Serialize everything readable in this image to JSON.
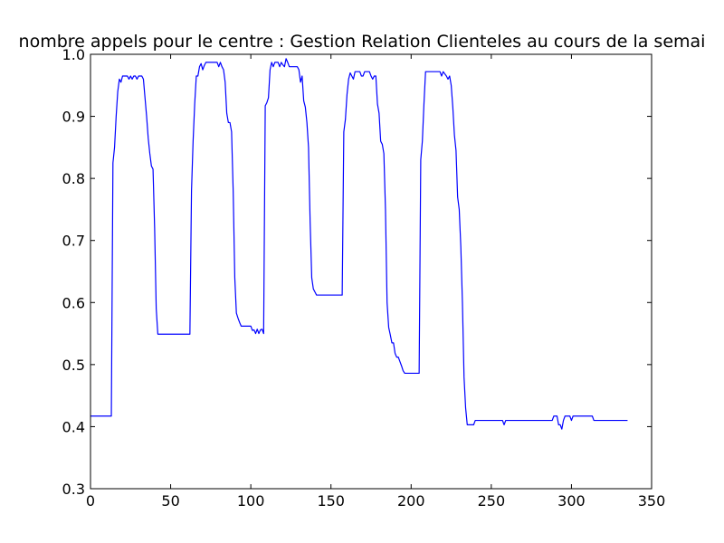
{
  "chart_data": {
    "type": "line",
    "title": "nombre appels pour le centre : Gestion Relation Clienteles au cours de la semai",
    "xlabel": "",
    "ylabel": "",
    "xlim": [
      0,
      350
    ],
    "ylim": [
      0.3,
      1.0
    ],
    "x_ticks": [
      0,
      50,
      100,
      150,
      200,
      250,
      300,
      350
    ],
    "y_ticks": [
      0.3,
      0.4,
      0.5,
      0.6,
      0.7,
      0.8,
      0.9,
      1.0
    ],
    "x_tick_labels": [
      "0",
      "50",
      "100",
      "150",
      "200",
      "250",
      "300",
      "350"
    ],
    "y_tick_labels": [
      "0.3",
      "0.4",
      "0.5",
      "0.6",
      "0.7",
      "0.8",
      "0.9",
      "1.0"
    ],
    "grid": false,
    "series": [
      {
        "color": "#0000ff",
        "points": [
          [
            0,
            0.417
          ],
          [
            13,
            0.417
          ],
          [
            14,
            0.825
          ],
          [
            15,
            0.85
          ],
          [
            16,
            0.9
          ],
          [
            17,
            0.94
          ],
          [
            18,
            0.96
          ],
          [
            19,
            0.955
          ],
          [
            20,
            0.965
          ],
          [
            23,
            0.965
          ],
          [
            24,
            0.96
          ],
          [
            25,
            0.965
          ],
          [
            26,
            0.96
          ],
          [
            27,
            0.965
          ],
          [
            28,
            0.965
          ],
          [
            29,
            0.96
          ],
          [
            30,
            0.965
          ],
          [
            32,
            0.965
          ],
          [
            33,
            0.96
          ],
          [
            34,
            0.93
          ],
          [
            35,
            0.9
          ],
          [
            36,
            0.865
          ],
          [
            37,
            0.84
          ],
          [
            38,
            0.82
          ],
          [
            39,
            0.815
          ],
          [
            40,
            0.72
          ],
          [
            41,
            0.59
          ],
          [
            42,
            0.549
          ],
          [
            62,
            0.549
          ],
          [
            63,
            0.78
          ],
          [
            64,
            0.86
          ],
          [
            65,
            0.92
          ],
          [
            66,
            0.965
          ],
          [
            67,
            0.965
          ],
          [
            68,
            0.98
          ],
          [
            69,
            0.985
          ],
          [
            70,
            0.975
          ],
          [
            71,
            0.982
          ],
          [
            72,
            0.987
          ],
          [
            79,
            0.987
          ],
          [
            80,
            0.98
          ],
          [
            81,
            0.987
          ],
          [
            82,
            0.98
          ],
          [
            83,
            0.975
          ],
          [
            84,
            0.955
          ],
          [
            85,
            0.905
          ],
          [
            86,
            0.89
          ],
          [
            87,
            0.89
          ],
          [
            88,
            0.875
          ],
          [
            89,
            0.78
          ],
          [
            90,
            0.64
          ],
          [
            91,
            0.583
          ],
          [
            92,
            0.575
          ],
          [
            93,
            0.568
          ],
          [
            94,
            0.562
          ],
          [
            100,
            0.562
          ],
          [
            101,
            0.555
          ],
          [
            102,
            0.556
          ],
          [
            103,
            0.55
          ],
          [
            104,
            0.557
          ],
          [
            105,
            0.55
          ],
          [
            106,
            0.556
          ],
          [
            107,
            0.557
          ],
          [
            108,
            0.55
          ],
          [
            109,
            0.917
          ],
          [
            110,
            0.922
          ],
          [
            111,
            0.93
          ],
          [
            112,
            0.975
          ],
          [
            113,
            0.987
          ],
          [
            114,
            0.98
          ],
          [
            115,
            0.987
          ],
          [
            117,
            0.987
          ],
          [
            118,
            0.98
          ],
          [
            119,
            0.987
          ],
          [
            120,
            0.983
          ],
          [
            121,
            0.98
          ],
          [
            122,
            0.993
          ],
          [
            123,
            0.987
          ],
          [
            124,
            0.98
          ],
          [
            129,
            0.98
          ],
          [
            130,
            0.975
          ],
          [
            131,
            0.955
          ],
          [
            132,
            0.965
          ],
          [
            133,
            0.925
          ],
          [
            134,
            0.915
          ],
          [
            135,
            0.89
          ],
          [
            136,
            0.85
          ],
          [
            137,
            0.73
          ],
          [
            138,
            0.64
          ],
          [
            139,
            0.622
          ],
          [
            140,
            0.617
          ],
          [
            141,
            0.612
          ],
          [
            157,
            0.612
          ],
          [
            158,
            0.875
          ],
          [
            159,
            0.895
          ],
          [
            160,
            0.935
          ],
          [
            161,
            0.96
          ],
          [
            162,
            0.97
          ],
          [
            163,
            0.965
          ],
          [
            164,
            0.96
          ],
          [
            165,
            0.972
          ],
          [
            168,
            0.972
          ],
          [
            169,
            0.965
          ],
          [
            170,
            0.965
          ],
          [
            171,
            0.972
          ],
          [
            174,
            0.972
          ],
          [
            175,
            0.965
          ],
          [
            176,
            0.96
          ],
          [
            177,
            0.965
          ],
          [
            178,
            0.965
          ],
          [
            179,
            0.92
          ],
          [
            180,
            0.905
          ],
          [
            181,
            0.86
          ],
          [
            182,
            0.855
          ],
          [
            183,
            0.84
          ],
          [
            184,
            0.75
          ],
          [
            185,
            0.6
          ],
          [
            186,
            0.56
          ],
          [
            187,
            0.548
          ],
          [
            188,
            0.535
          ],
          [
            189,
            0.535
          ],
          [
            190,
            0.518
          ],
          [
            191,
            0.512
          ],
          [
            192,
            0.512
          ],
          [
            193,
            0.505
          ],
          [
            194,
            0.498
          ],
          [
            195,
            0.49
          ],
          [
            196,
            0.486
          ],
          [
            205,
            0.486
          ],
          [
            206,
            0.83
          ],
          [
            207,
            0.86
          ],
          [
            208,
            0.92
          ],
          [
            209,
            0.972
          ],
          [
            218,
            0.972
          ],
          [
            219,
            0.965
          ],
          [
            220,
            0.972
          ],
          [
            222,
            0.965
          ],
          [
            223,
            0.96
          ],
          [
            224,
            0.965
          ],
          [
            225,
            0.95
          ],
          [
            226,
            0.915
          ],
          [
            227,
            0.87
          ],
          [
            228,
            0.845
          ],
          [
            229,
            0.77
          ],
          [
            230,
            0.75
          ],
          [
            231,
            0.69
          ],
          [
            232,
            0.6
          ],
          [
            233,
            0.48
          ],
          [
            234,
            0.43
          ],
          [
            235,
            0.403
          ],
          [
            239,
            0.403
          ],
          [
            240,
            0.41
          ],
          [
            257,
            0.41
          ],
          [
            258,
            0.403
          ],
          [
            259,
            0.41
          ],
          [
            288,
            0.41
          ],
          [
            289,
            0.417
          ],
          [
            291,
            0.417
          ],
          [
            292,
            0.403
          ],
          [
            293,
            0.403
          ],
          [
            294,
            0.396
          ],
          [
            295,
            0.41
          ],
          [
            296,
            0.417
          ],
          [
            299,
            0.417
          ],
          [
            300,
            0.41
          ],
          [
            301,
            0.417
          ],
          [
            313,
            0.417
          ],
          [
            314,
            0.41
          ],
          [
            335,
            0.41
          ]
        ]
      }
    ]
  }
}
